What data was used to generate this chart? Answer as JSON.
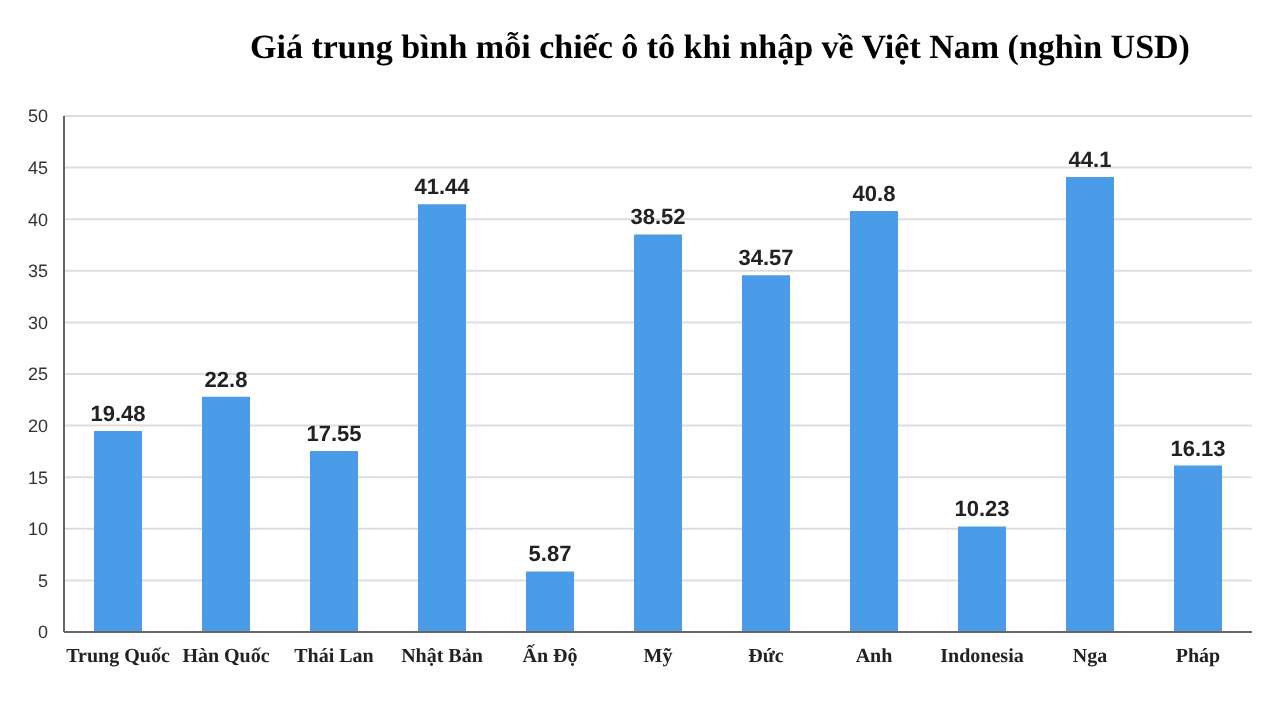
{
  "chart_data": {
    "type": "bar",
    "title": "Giá trung bình mỗi chiếc ô tô khi nhập về Việt Nam (nghìn USD)",
    "categories": [
      "Trung Quốc",
      "Hàn Quốc",
      "Thái Lan",
      "Nhật Bản",
      "Ấn Độ",
      "Mỹ",
      "Đức",
      "Anh",
      "Indonesia",
      "Nga",
      "Pháp"
    ],
    "values": [
      19.48,
      22.8,
      17.55,
      41.44,
      5.87,
      38.52,
      34.57,
      40.8,
      10.23,
      44.1,
      16.13
    ],
    "color": "#4a9be8",
    "ylim": [
      0,
      50
    ],
    "yticks": [
      0,
      5,
      10,
      15,
      20,
      25,
      30,
      35,
      40,
      45,
      50
    ],
    "grid": "y",
    "data_labels": true
  }
}
